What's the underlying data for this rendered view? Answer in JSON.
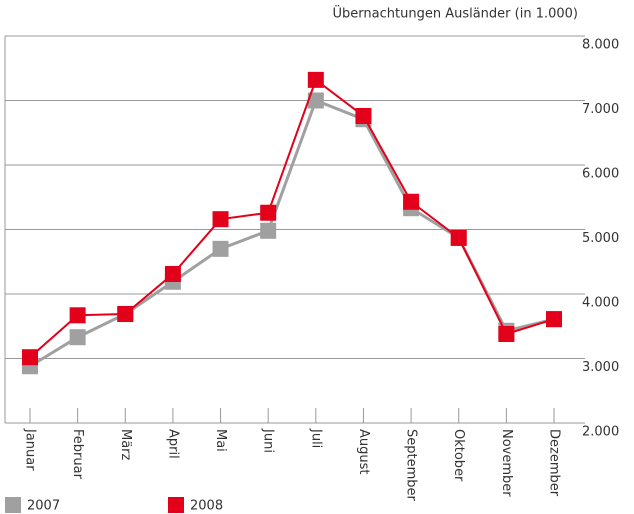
{
  "chart_data": {
    "type": "line",
    "y_axis_label": "Übernachtungen Ausländer (in 1.000)",
    "categories": [
      "Januar",
      "Februar",
      "März",
      "April",
      "Mai",
      "Juni",
      "Juli",
      "August",
      "September",
      "Oktober",
      "November",
      "Dezember"
    ],
    "series": [
      {
        "name": "2007",
        "color": "#a0a0a0",
        "values": [
          2880,
          3330,
          3690,
          4190,
          4700,
          4980,
          7000,
          6710,
          5330,
          4870,
          3430,
          3610
        ]
      },
      {
        "name": "2008",
        "color": "#e2001a",
        "values": [
          3020,
          3670,
          3690,
          4310,
          5160,
          5260,
          7320,
          6760,
          5430,
          4870,
          3380,
          3610
        ]
      }
    ],
    "ylim": [
      2000,
      8000
    ],
    "yticks": [
      {
        "value": 2000,
        "label": "2.000"
      },
      {
        "value": 3000,
        "label": "3.000"
      },
      {
        "value": 4000,
        "label": "4.000"
      },
      {
        "value": 5000,
        "label": "5.000"
      },
      {
        "value": 6000,
        "label": "6.000"
      },
      {
        "value": 7000,
        "label": "7.000"
      },
      {
        "value": 8000,
        "label": "8.000"
      }
    ],
    "grid": true,
    "legend": "bottom"
  }
}
